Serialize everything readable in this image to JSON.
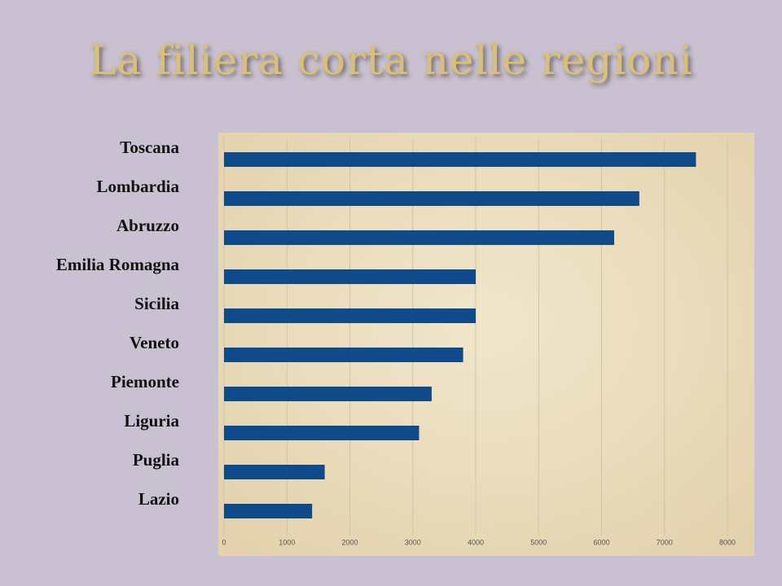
{
  "chart_data": {
    "type": "bar",
    "orientation": "horizontal",
    "title": "La filiera corta nelle regioni",
    "categories": [
      "Toscana",
      "Lombardia",
      "Abruzzo",
      "Emilia Romagna",
      "Sicilia",
      "Veneto",
      "Piemonte",
      "Liguria",
      "Puglia",
      "Lazio"
    ],
    "values": [
      7500,
      6600,
      6200,
      4000,
      4000,
      3800,
      3300,
      3100,
      1600,
      1400
    ],
    "color": "#0f4a8a",
    "xlim": [
      0,
      8000
    ],
    "xticks": [
      0,
      1000,
      2000,
      3000,
      4000,
      5000,
      6000,
      7000,
      8000
    ],
    "grid": true
  }
}
